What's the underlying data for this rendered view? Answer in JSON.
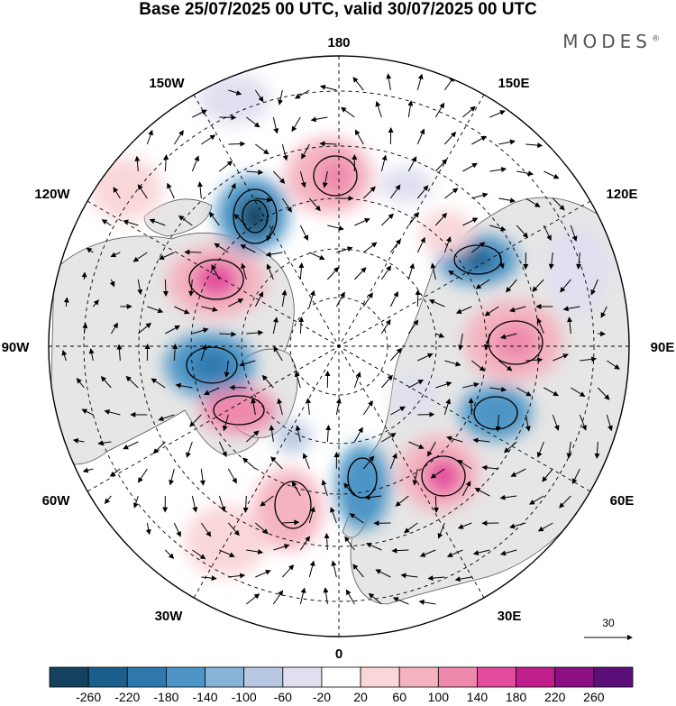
{
  "title": "Base 25/07/2025 00 UTC, valid 30/07/2025 00 UTC",
  "logo": {
    "text": "MODES",
    "mark": "®"
  },
  "longitude_labels": {
    "lon_180": "180",
    "lon_150e": "150E",
    "lon_120e": "120E",
    "lon_90e": "90E",
    "lon_60e": "60E",
    "lon_30e": "30E",
    "lon_0": "0",
    "lon_30w": "30W",
    "lon_60w": "60W",
    "lon_90w": "90W",
    "lon_120w": "120W",
    "lon_150w": "150W"
  },
  "reference_vector": {
    "label": "30"
  },
  "colorbar": {
    "levels": [
      "-260",
      "-220",
      "-180",
      "-140",
      "-100",
      "-60",
      "-20",
      "20",
      "60",
      "100",
      "140",
      "180",
      "220",
      "260"
    ],
    "colors": [
      "#14425e",
      "#1b5f8c",
      "#2d78ad",
      "#4d95c6",
      "#86b3d8",
      "#b9c9e3",
      "#dfdff0",
      "#ffffff",
      "#f9d7d9",
      "#f4b3bf",
      "#ee89ad",
      "#e34c9e",
      "#c01e8c",
      "#8c0f84",
      "#5a1078"
    ]
  },
  "map": {
    "land_color": "#e8e8e8",
    "anomaly_centers": [
      {
        "name": "pos-bering",
        "sign": "positive",
        "strength": 140
      },
      {
        "name": "neg-gulf-alaska",
        "sign": "negative",
        "strength": 260
      },
      {
        "name": "pos-canada-west",
        "sign": "positive",
        "strength": 180
      },
      {
        "name": "neg-hudson",
        "sign": "negative",
        "strength": 180
      },
      {
        "name": "pos-labrador",
        "sign": "positive",
        "strength": 180
      },
      {
        "name": "neg-north-atlantic",
        "sign": "negative",
        "strength": 60
      },
      {
        "name": "pos-atlantic-south",
        "sign": "positive",
        "strength": 140
      },
      {
        "name": "neg-scandinavia",
        "sign": "negative",
        "strength": 140
      },
      {
        "name": "pos-russia-west",
        "sign": "positive",
        "strength": 140
      },
      {
        "name": "neg-siberia-central",
        "sign": "negative",
        "strength": 140
      },
      {
        "name": "pos-siberia-east",
        "sign": "positive",
        "strength": 100
      },
      {
        "name": "neg-east-asia",
        "sign": "negative",
        "strength": 180
      },
      {
        "name": "pos-north-pacific",
        "sign": "positive",
        "strength": 60
      }
    ]
  }
}
